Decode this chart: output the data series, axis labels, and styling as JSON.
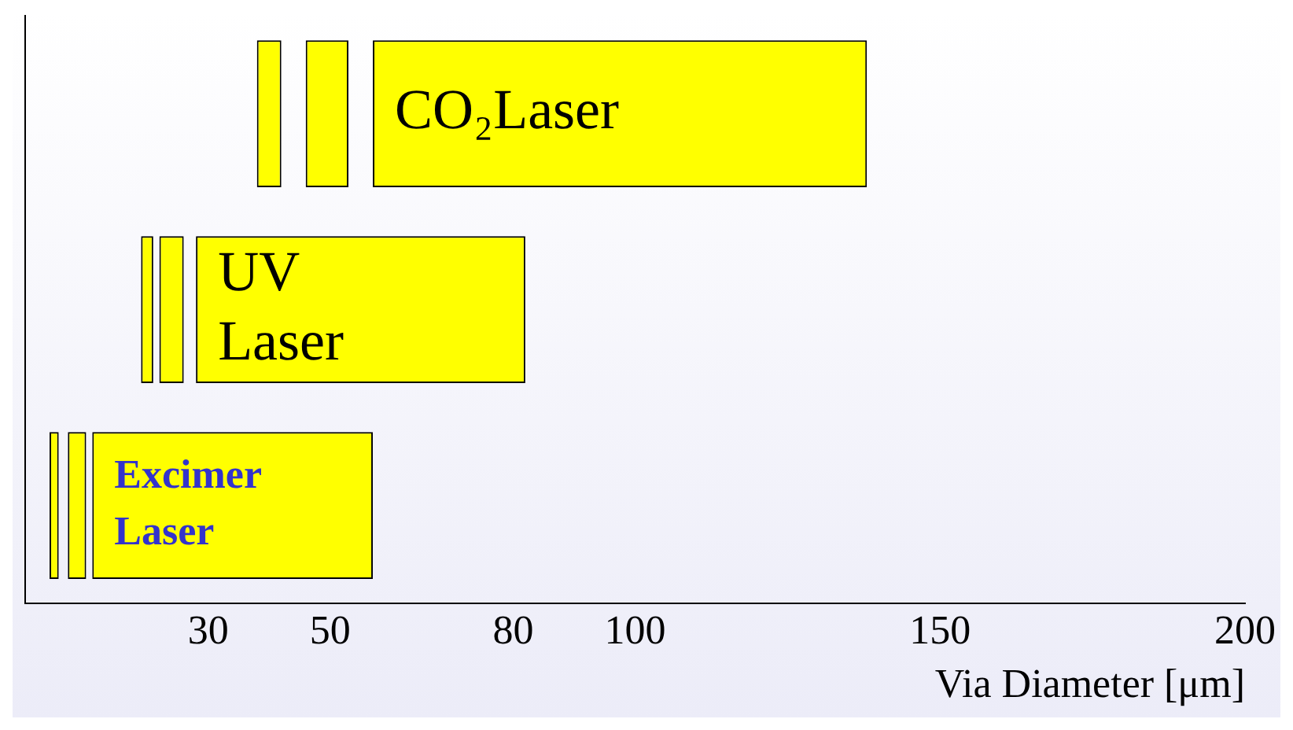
{
  "chart_data": {
    "type": "bar",
    "orientation": "horizontal",
    "categories": [
      "CO₂Laser",
      "UV\nLaser",
      "Excimer\nLaser"
    ],
    "series": [
      {
        "color": "#ffff00",
        "base": [
          38,
          19,
          4
        ],
        "values": [
          4,
          2,
          1.5
        ]
      },
      {
        "color": "#ffff00",
        "base": [
          46,
          22,
          7
        ],
        "values": [
          7,
          4,
          3
        ]
      },
      {
        "color": "#ffff00",
        "base": [
          57,
          28,
          11
        ],
        "values": [
          81,
          54,
          46
        ]
      }
    ],
    "xlim": [
      0,
      200
    ],
    "xticks": [
      30,
      50,
      80,
      100,
      150,
      200
    ],
    "xlabel": "Via Diameter [μm]",
    "tick_labels": "x",
    "grid": false,
    "legend": false
  }
}
